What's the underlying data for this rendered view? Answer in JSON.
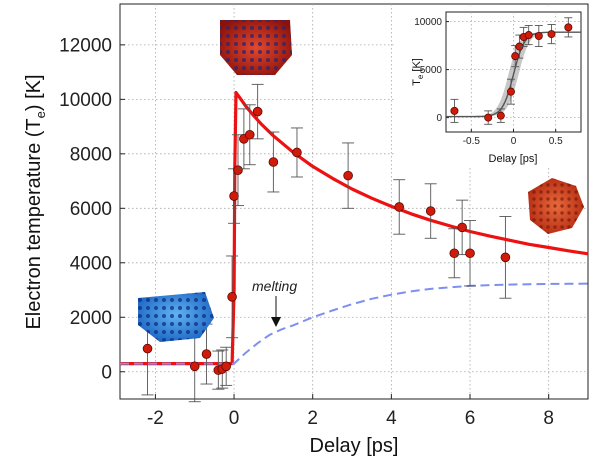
{
  "chart_data": [
    {
      "type": "scatter",
      "xlabel": "Delay [ps]",
      "ylabel": "Electron temperature (T",
      "ylabel_sub": "e",
      "ylabel_end": ") [K]",
      "xlim": [
        -2.9,
        9.0
      ],
      "ylim": [
        -1000,
        13500
      ],
      "xticks": [
        -2,
        0,
        2,
        4,
        6,
        8
      ],
      "yticks": [
        0,
        2000,
        4000,
        6000,
        8000,
        10000,
        12000
      ],
      "grid": true,
      "colors": {
        "points": "#d21a0a",
        "model": "#ee1111",
        "lattice": "#7f8ff0"
      },
      "series": [
        {
          "kind": "points",
          "x": [
            -2.2,
            -1.0,
            -0.7,
            -0.4,
            -0.3,
            -0.2,
            -0.05,
            0.0,
            0.1,
            0.25,
            0.4,
            0.6,
            1.0,
            1.6,
            2.9,
            4.2,
            5.0,
            5.6,
            5.8,
            6.0,
            6.9
          ],
          "y": [
            850,
            200,
            650,
            60,
            100,
            200,
            2750,
            6450,
            7400,
            8550,
            8700,
            9550,
            7700,
            8050,
            7200,
            6050,
            5900,
            4350,
            5300,
            4350,
            4200
          ],
          "err": [
            1700,
            1300,
            1100,
            700,
            700,
            700,
            1500,
            1000,
            1300,
            1100,
            1100,
            1000,
            1100,
            900,
            1200,
            1000,
            1000,
            900,
            1000,
            1200,
            1500
          ]
        },
        {
          "kind": "line",
          "x": [
            -2.9,
            -0.05,
            0.0,
            0.02,
            0.05,
            0.1,
            0.2,
            0.3,
            0.5,
            0.7,
            1.0,
            1.5,
            2.0,
            2.5,
            3.0,
            3.5,
            4.0,
            4.5,
            5.0,
            5.5,
            6.0,
            6.5,
            7.0,
            7.5,
            8.0,
            8.5,
            9.0
          ],
          "y": [
            300,
            300,
            3000,
            7500,
            10250,
            10150,
            9950,
            9750,
            9400,
            9080,
            8660,
            8060,
            7540,
            7100,
            6710,
            6370,
            6070,
            5800,
            5560,
            5350,
            5150,
            4980,
            4830,
            4680,
            4560,
            4440,
            4330
          ]
        },
        {
          "kind": "line",
          "style": "dashed",
          "x": [
            -2.9,
            0.0,
            0.3,
            0.6,
            0.9,
            1.2,
            1.5,
            2.0,
            2.5,
            3.0,
            3.5,
            4.0,
            4.5,
            5.0,
            5.5,
            6.0,
            6.5,
            7.0,
            7.5,
            8.0,
            8.5,
            9.0
          ],
          "y": [
            300,
            300,
            700,
            1050,
            1350,
            1550,
            1700,
            2000,
            2250,
            2480,
            2680,
            2830,
            2950,
            3040,
            3100,
            3150,
            3180,
            3200,
            3215,
            3225,
            3230,
            3235
          ]
        }
      ],
      "annotation": {
        "text": "melting",
        "x": 0.9,
        "y": 1600
      }
    },
    {
      "type": "scatter",
      "inset": true,
      "xlabel": "Delay [ps]",
      "ylabel": "T",
      "ylabel_sub": "e",
      "ylabel_end": " [K]",
      "xlim": [
        -0.8,
        0.8
      ],
      "ylim": [
        -1500,
        11000
      ],
      "xticks": [
        -0.5,
        0,
        0.5
      ],
      "xticklabels": [
        "-0.5",
        "0",
        "0.5"
      ],
      "yticks": [
        0,
        5000,
        10000
      ],
      "grid": true,
      "series": [
        {
          "kind": "points",
          "x": [
            -0.7,
            -0.3,
            -0.15,
            -0.03,
            0.02,
            0.07,
            0.12,
            0.18,
            0.3,
            0.45,
            0.65
          ],
          "y": [
            700,
            0,
            200,
            2700,
            6400,
            7400,
            8400,
            8600,
            8500,
            8700,
            9400
          ],
          "err": [
            1200,
            700,
            700,
            1300,
            1100,
            1200,
            1000,
            1000,
            1100,
            1000,
            1000
          ]
        },
        {
          "kind": "sigmoid",
          "x0": 0.0,
          "width": 0.065,
          "low": 100,
          "high": 8900
        }
      ]
    }
  ]
}
